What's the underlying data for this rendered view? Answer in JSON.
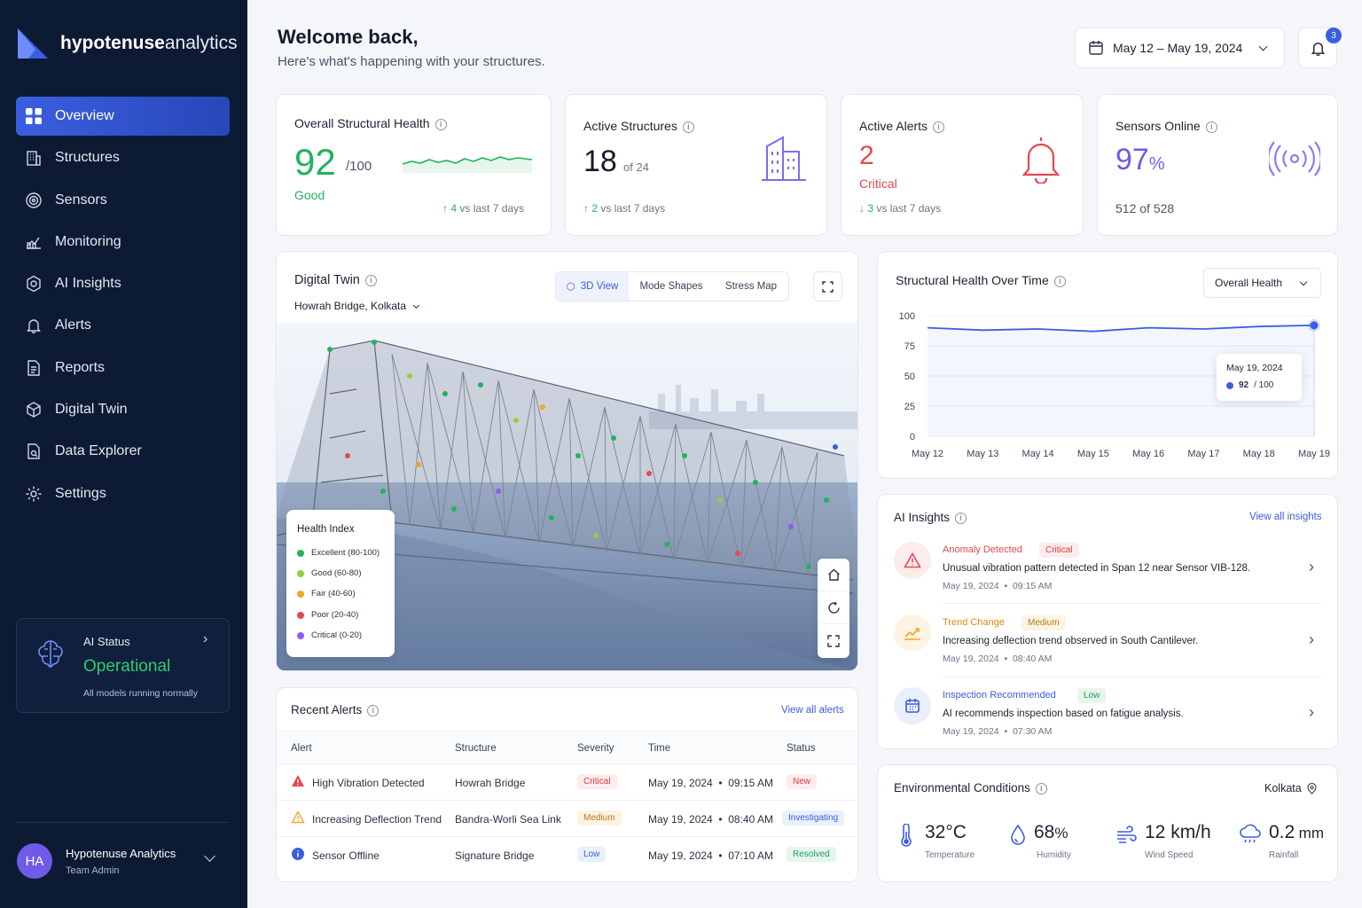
{
  "brand": {
    "name_bold": "hypotenuse",
    "name_light": "analytics"
  },
  "nav": [
    {
      "label": "Overview",
      "icon": "grid-icon",
      "active": true
    },
    {
      "label": "Structures",
      "icon": "building-icon"
    },
    {
      "label": "Sensors",
      "icon": "sensor-icon"
    },
    {
      "label": "Monitoring",
      "icon": "monitoring-icon"
    },
    {
      "label": "AI Insights",
      "icon": "ai-icon"
    },
    {
      "label": "Alerts",
      "icon": "bell-icon"
    },
    {
      "label": "Reports",
      "icon": "report-icon"
    },
    {
      "label": "Digital Twin",
      "icon": "cube-icon"
    },
    {
      "label": "Data Explorer",
      "icon": "data-icon"
    },
    {
      "label": "Settings",
      "icon": "gear-icon"
    }
  ],
  "ai_status": {
    "title": "AI Status",
    "value": "Operational",
    "note": "All models running normally"
  },
  "user": {
    "initials": "HA",
    "name": "Hypotenuse Analytics",
    "role": "Team Admin"
  },
  "header": {
    "title": "Welcome back,",
    "subtitle": "Here's what's happening with your structures.",
    "date_range": "May 12 – May 19, 2024",
    "notif_count": "3"
  },
  "kpis": {
    "health": {
      "label": "Overall Structural Health",
      "value": "92",
      "max": "/100",
      "status": "Good",
      "delta": "4",
      "delta_note": "vs last 7 days"
    },
    "structures": {
      "label": "Active Structures",
      "value": "18",
      "of": "of 24",
      "delta": "2",
      "delta_note": "vs last 7 days"
    },
    "alerts": {
      "label": "Active Alerts",
      "value": "2",
      "status": "Critical",
      "delta": "3",
      "delta_note": "vs last 7 days"
    },
    "sensors": {
      "label": "Sensors Online",
      "value": "97",
      "unit": "%",
      "note": "512 of 528"
    }
  },
  "twin": {
    "title": "Digital Twin",
    "structure": "Howrah Bridge, Kolkata",
    "tabs": [
      "3D View",
      "Mode Shapes",
      "Stress Map"
    ],
    "legend_title": "Health Index",
    "legend": [
      {
        "label": "Excellent (80-100)",
        "color": "#22b35e"
      },
      {
        "label": "Good (60-80)",
        "color": "#9ccc3a"
      },
      {
        "label": "Fair (40-60)",
        "color": "#f5a524"
      },
      {
        "label": "Poor (20-40)",
        "color": "#e5484d"
      },
      {
        "label": "Critical (0-20)",
        "color": "#8b5cf6"
      }
    ]
  },
  "trend": {
    "title": "Structural Health Over Time",
    "dropdown": "Overall Health",
    "tooltip_date": "May 19, 2024",
    "tooltip_value": "92",
    "tooltip_max": "/ 100"
  },
  "chart_data": {
    "type": "line",
    "x": [
      "May 12",
      "May 13",
      "May 14",
      "May 15",
      "May 16",
      "May 17",
      "May 18",
      "May 19"
    ],
    "y": [
      90,
      88,
      89,
      87,
      90,
      89,
      91,
      92
    ],
    "ylim": [
      0,
      100
    ],
    "yticks": [
      0,
      25,
      50,
      75,
      100
    ]
  },
  "alerts_table": {
    "title": "Recent Alerts",
    "view_all": "View all alerts",
    "columns": [
      "Alert",
      "Structure",
      "Severity",
      "Time",
      "Status"
    ],
    "rows": [
      {
        "alert": "High Vibration Detected",
        "structure": "Howrah Bridge",
        "severity": "Critical",
        "time": "May 19, 2024  •  09:15 AM",
        "status": "New"
      },
      {
        "alert": "Increasing Deflection Trend",
        "structure": "Bandra-Worli Sea Link",
        "severity": "Medium",
        "time": "May 19, 2024  •  08:40 AM",
        "status": "Investigating"
      },
      {
        "alert": "Sensor Offline",
        "structure": "Signature Bridge",
        "severity": "Low",
        "time": "May 19, 2024  •  07:10 AM",
        "status": "Resolved"
      }
    ]
  },
  "insights": {
    "title": "AI Insights",
    "view_all": "View all insights",
    "items": [
      {
        "type": "Anomaly Detected",
        "level": "Critical",
        "text": "Unusual vibration pattern detected in Span 12 near Sensor VIB-128.",
        "time": "May 19, 2024  •  09:15 AM"
      },
      {
        "type": "Trend Change",
        "level": "Medium",
        "text": "Increasing deflection trend observed in South Cantilever.",
        "time": "May 19, 2024  •  08:40 AM"
      },
      {
        "type": "Inspection Recommended",
        "level": "Low",
        "text": "AI recommends inspection based on fatigue analysis.",
        "time": "May 19, 2024  •  07:30 AM"
      }
    ]
  },
  "env": {
    "title": "Environmental Conditions",
    "location": "Kolkata",
    "items": [
      {
        "value": "32°C",
        "unit": "",
        "label": "Temperature"
      },
      {
        "value": "68",
        "unit": "%",
        "label": "Humidity"
      },
      {
        "value": "12 km/h",
        "unit": "",
        "label": "Wind Speed"
      },
      {
        "value": "0.2",
        "unit": "mm",
        "label": "Rainfall"
      }
    ]
  },
  "colors": {
    "accent": "#3b5ee0",
    "good": "#22b35e",
    "critical": "#e5484d",
    "warn": "#f5a524",
    "purple": "#7c5cf6"
  }
}
